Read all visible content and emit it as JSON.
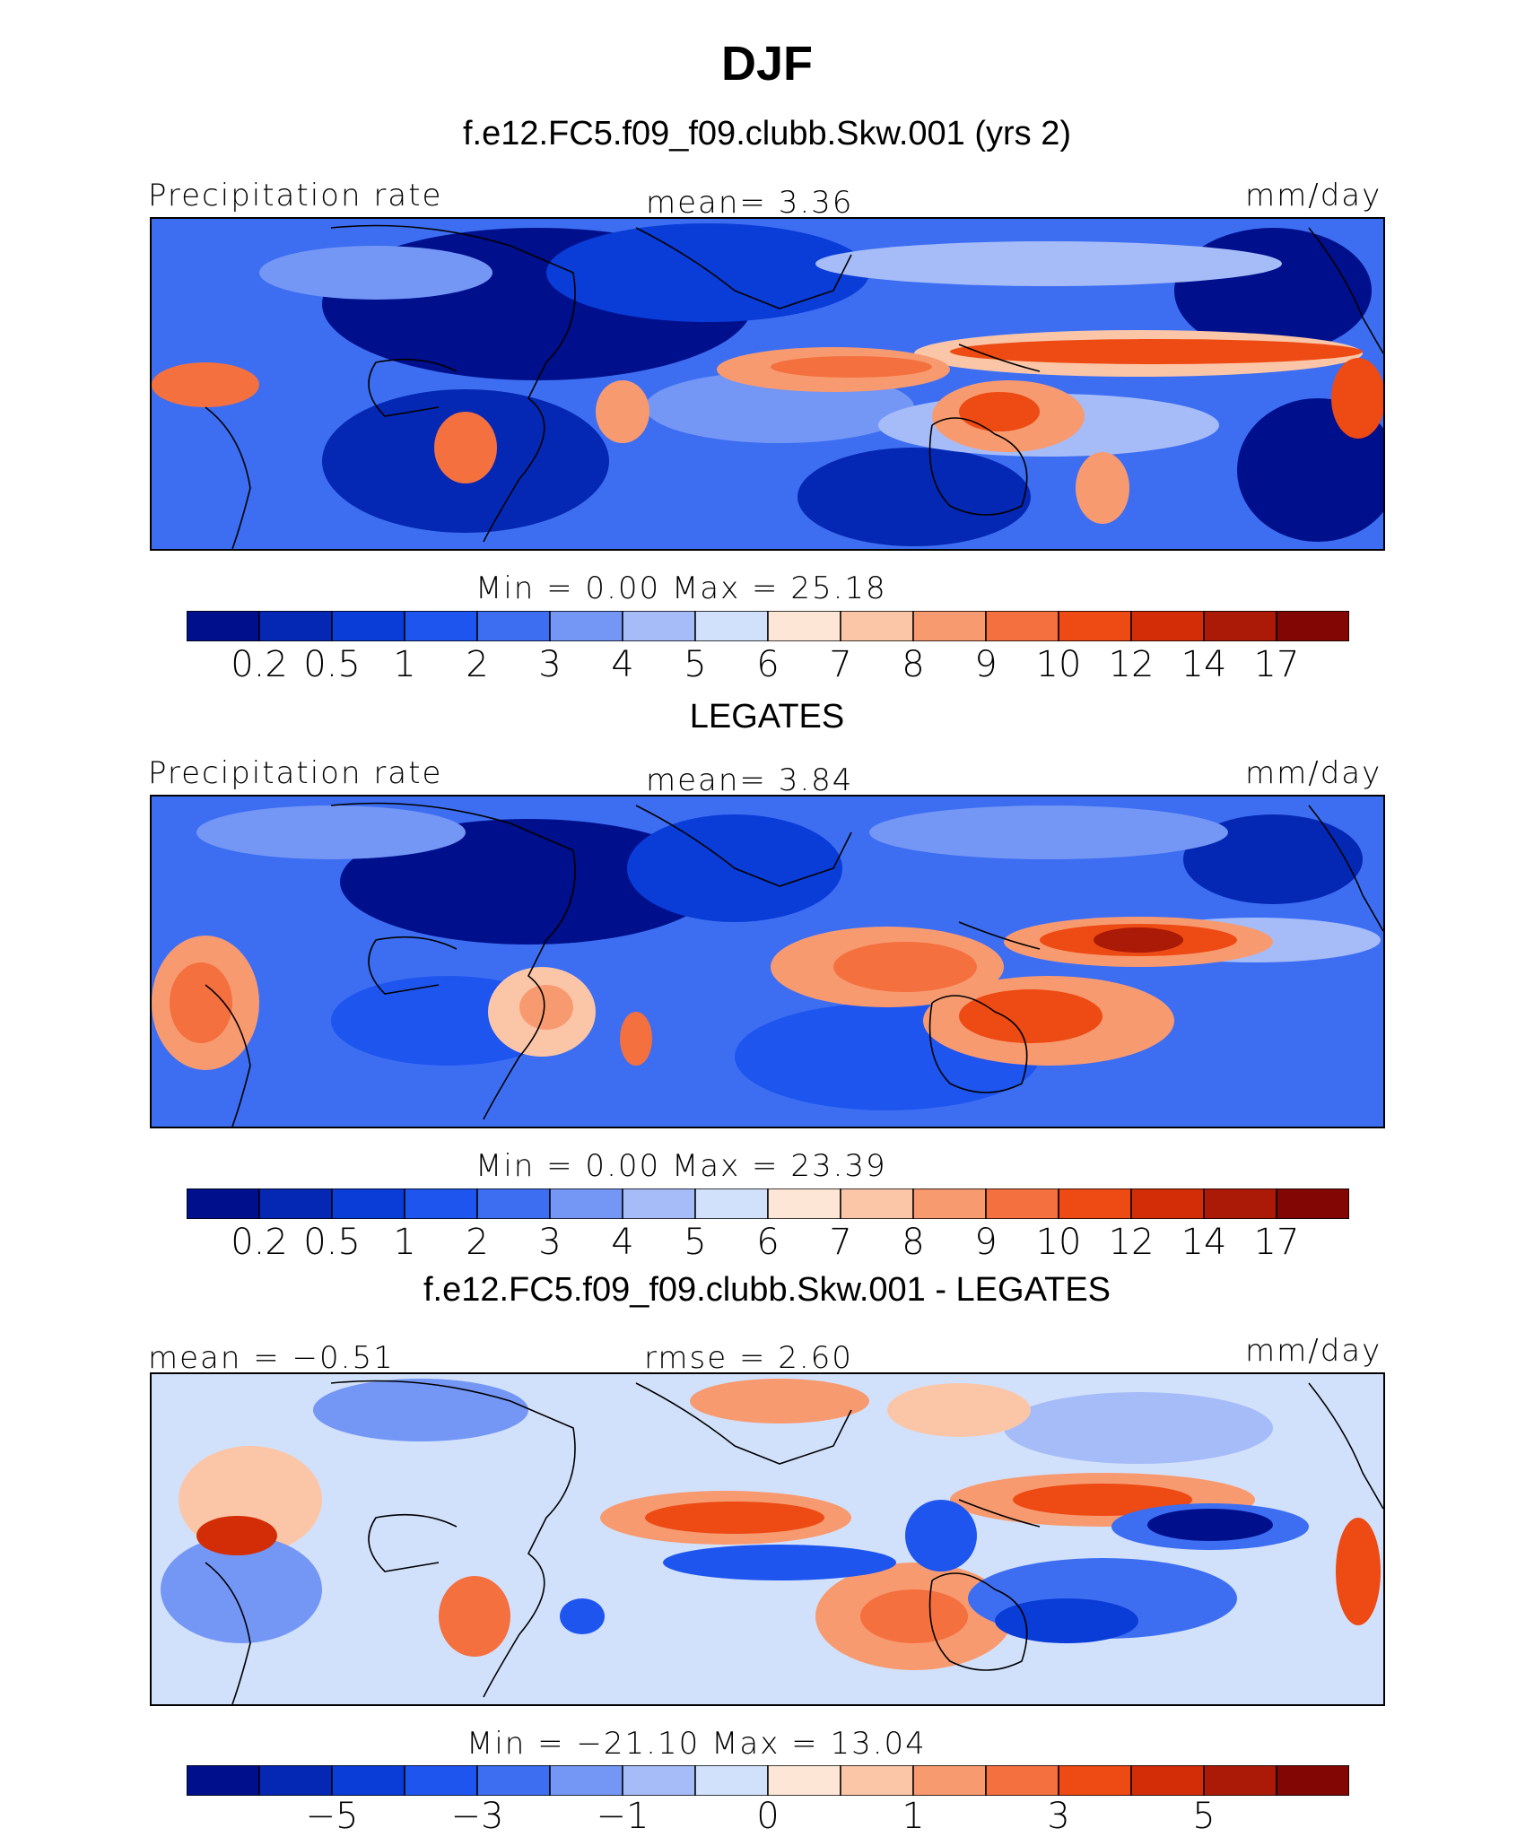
{
  "title": "DJF",
  "panels": [
    {
      "id": "model",
      "heading": "f.e12.FC5.f09_f09.clubb.Skw.001 (yrs 2)",
      "left_label": "Precipitation rate",
      "center_label": "mean=    3.36",
      "right_label": "mm/day",
      "minmax": "Min  =     0.00  Max  =    25.18"
    },
    {
      "id": "obs",
      "heading": "LEGATES",
      "left_label": "Precipitation rate",
      "center_label": "mean=    3.84",
      "right_label": "mm/day",
      "minmax": "Min  =     0.00  Max  =    23.39"
    },
    {
      "id": "diff",
      "heading": "f.e12.FC5.f09_f09.clubb.Skw.001 - LEGATES",
      "left_label": "mean  =   −0.51",
      "center_label": "rmse  =    2.60",
      "right_label": "mm/day",
      "minmax": "Min  = −21.10  Max  =   13.04"
    }
  ],
  "colorbar": {
    "colors": [
      "#000f8c",
      "#0528b4",
      "#0a3cd7",
      "#1e55ef",
      "#3d6ef2",
      "#7496f5",
      "#a6bcf8",
      "#d2e1fb",
      "#fde6d6",
      "#fbc6a8",
      "#f89a70",
      "#f4703f",
      "#ed4a14",
      "#d22d07",
      "#aa1a06",
      "#820603"
    ],
    "precip_ticks": [
      "0.2",
      "0.5",
      "1",
      "2",
      "3",
      "4",
      "5",
      "6",
      "7",
      "8",
      "9",
      "10",
      "12",
      "14",
      "17"
    ],
    "diff_ticks": [
      "−5",
      "−3",
      "−1",
      "0",
      "1",
      "3",
      "5"
    ]
  }
}
